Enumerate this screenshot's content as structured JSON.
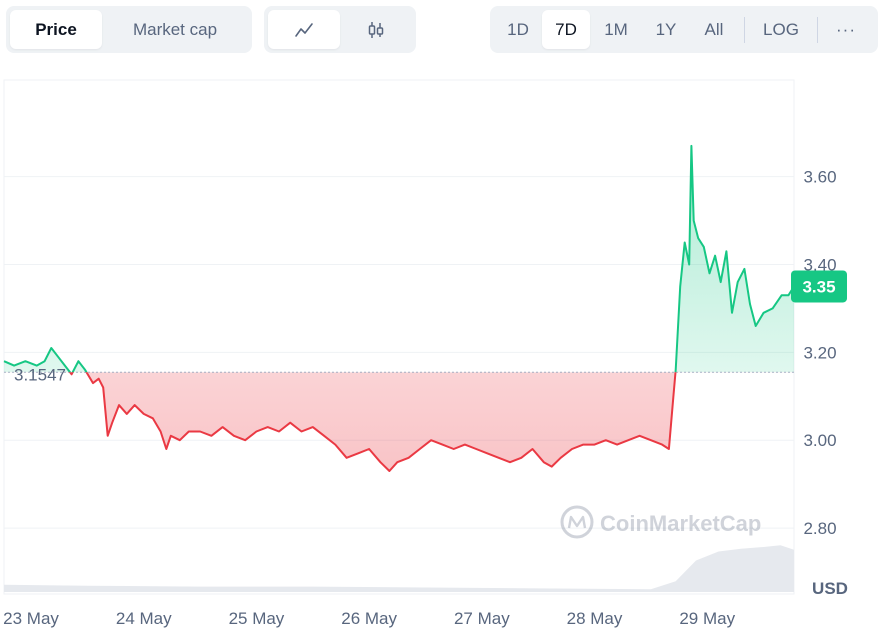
{
  "toolbar": {
    "metric_tabs": [
      {
        "label": "Price",
        "active": true
      },
      {
        "label": "Market cap",
        "active": false
      }
    ],
    "chart_type_buttons": [
      {
        "icon": "line-chart-icon",
        "active": true
      },
      {
        "icon": "candlestick-icon",
        "active": false
      }
    ],
    "range_tabs": [
      {
        "label": "1D",
        "active": false
      },
      {
        "label": "7D",
        "active": true
      },
      {
        "label": "1M",
        "active": false
      },
      {
        "label": "1Y",
        "active": false
      },
      {
        "label": "All",
        "active": false
      }
    ],
    "log_label": "LOG",
    "more_label": "···"
  },
  "watermark": "CoinMarketCap",
  "colors": {
    "up": "#16c784",
    "down": "#ea3943",
    "volume": "#e6e9ee",
    "grid": "#eff2f5",
    "reference": "#a6b0c3",
    "current_badge": "#16c784"
  },
  "chart_data": {
    "type": "area",
    "title": "",
    "xlabel": "",
    "ylabel": "USD",
    "currency_label": "USD",
    "y_ticks": [
      "2.80",
      "3.00",
      "3.20",
      "3.40",
      "3.60"
    ],
    "ylim": [
      2.65,
      3.82
    ],
    "x_tick_labels": [
      "23 May",
      "24 May",
      "25 May",
      "26 May",
      "27 May",
      "28 May",
      "29 May"
    ],
    "x_range_days": [
      22.76,
      29.77
    ],
    "reference_price": 3.1547,
    "reference_label": "3.1547",
    "current_price": 3.35,
    "current_label": "3.35",
    "grid": true,
    "baseline_coloring": "above reference green, below reference red",
    "series": [
      {
        "points": [
          [
            22.76,
            3.18
          ],
          [
            22.85,
            3.17
          ],
          [
            22.95,
            3.18
          ],
          [
            23.05,
            3.17
          ],
          [
            23.12,
            3.18
          ],
          [
            23.18,
            3.21
          ],
          [
            23.24,
            3.19
          ],
          [
            23.3,
            3.17
          ],
          [
            23.36,
            3.15
          ],
          [
            23.42,
            3.18
          ],
          [
            23.48,
            3.16
          ],
          [
            23.55,
            3.13
          ],
          [
            23.6,
            3.14
          ],
          [
            23.64,
            3.12
          ],
          [
            23.68,
            3.01
          ],
          [
            23.72,
            3.04
          ],
          [
            23.78,
            3.08
          ],
          [
            23.85,
            3.06
          ],
          [
            23.92,
            3.08
          ],
          [
            24.0,
            3.06
          ],
          [
            24.08,
            3.05
          ],
          [
            24.15,
            3.02
          ],
          [
            24.2,
            2.98
          ],
          [
            24.24,
            3.01
          ],
          [
            24.32,
            3.0
          ],
          [
            24.4,
            3.02
          ],
          [
            24.5,
            3.02
          ],
          [
            24.6,
            3.01
          ],
          [
            24.7,
            3.03
          ],
          [
            24.8,
            3.01
          ],
          [
            24.9,
            3.0
          ],
          [
            25.0,
            3.02
          ],
          [
            25.1,
            3.03
          ],
          [
            25.2,
            3.02
          ],
          [
            25.3,
            3.04
          ],
          [
            25.4,
            3.02
          ],
          [
            25.5,
            3.03
          ],
          [
            25.6,
            3.01
          ],
          [
            25.7,
            2.99
          ],
          [
            25.8,
            2.96
          ],
          [
            25.9,
            2.97
          ],
          [
            26.0,
            2.98
          ],
          [
            26.1,
            2.95
          ],
          [
            26.18,
            2.93
          ],
          [
            26.25,
            2.95
          ],
          [
            26.35,
            2.96
          ],
          [
            26.45,
            2.98
          ],
          [
            26.55,
            3.0
          ],
          [
            26.65,
            2.99
          ],
          [
            26.75,
            2.98
          ],
          [
            26.85,
            2.99
          ],
          [
            26.95,
            2.98
          ],
          [
            27.05,
            2.97
          ],
          [
            27.15,
            2.96
          ],
          [
            27.25,
            2.95
          ],
          [
            27.35,
            2.96
          ],
          [
            27.45,
            2.98
          ],
          [
            27.55,
            2.95
          ],
          [
            27.62,
            2.94
          ],
          [
            27.7,
            2.96
          ],
          [
            27.8,
            2.98
          ],
          [
            27.9,
            2.99
          ],
          [
            28.0,
            2.99
          ],
          [
            28.1,
            3.0
          ],
          [
            28.2,
            2.99
          ],
          [
            28.3,
            3.0
          ],
          [
            28.4,
            3.01
          ],
          [
            28.5,
            3.0
          ],
          [
            28.6,
            2.99
          ],
          [
            28.66,
            2.98
          ],
          [
            28.7,
            3.1
          ],
          [
            28.72,
            3.16
          ],
          [
            28.76,
            3.35
          ],
          [
            28.8,
            3.45
          ],
          [
            28.84,
            3.4
          ],
          [
            28.86,
            3.67
          ],
          [
            28.88,
            3.5
          ],
          [
            28.92,
            3.46
          ],
          [
            28.97,
            3.44
          ],
          [
            29.02,
            3.38
          ],
          [
            29.07,
            3.42
          ],
          [
            29.12,
            3.36
          ],
          [
            29.17,
            3.43
          ],
          [
            29.22,
            3.29
          ],
          [
            29.27,
            3.36
          ],
          [
            29.33,
            3.39
          ],
          [
            29.38,
            3.31
          ],
          [
            29.43,
            3.26
          ],
          [
            29.5,
            3.29
          ],
          [
            29.58,
            3.3
          ],
          [
            29.66,
            3.33
          ],
          [
            29.72,
            3.33
          ],
          [
            29.77,
            3.35
          ]
        ]
      }
    ],
    "volume": [
      [
        22.76,
        0.08
      ],
      [
        23.5,
        0.07
      ],
      [
        24.5,
        0.06
      ],
      [
        25.5,
        0.06
      ],
      [
        26.5,
        0.05
      ],
      [
        27.5,
        0.04
      ],
      [
        28.5,
        0.03
      ],
      [
        28.72,
        0.12
      ],
      [
        28.9,
        0.35
      ],
      [
        29.1,
        0.45
      ],
      [
        29.3,
        0.48
      ],
      [
        29.5,
        0.5
      ],
      [
        29.65,
        0.52
      ],
      [
        29.77,
        0.47
      ]
    ]
  }
}
